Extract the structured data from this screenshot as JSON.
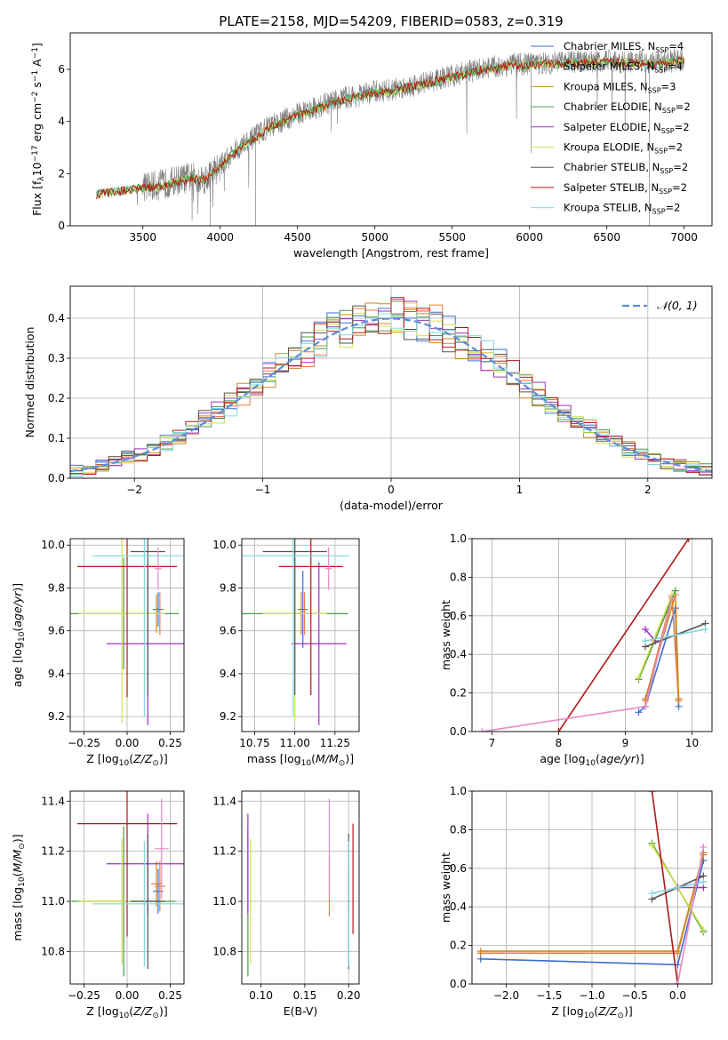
{
  "figure_title": "PLATE=2158, MJD=54209, FIBERID=0583, z=0.319",
  "colors": {
    "Chabrier MILES": "#3b6fd4",
    "Salpeter MILES": "#f07a3a",
    "Kroupa MILES": "#c98a22",
    "Chabrier ELODIE": "#4a9a4a",
    "Salpeter ELODIE": "#9b33c0",
    "Kroupa ELODIE": "#d4e04a",
    "Chabrier STELIB": "#555555",
    "Salpeter STELIB": "#b01818",
    "Kroupa STELIB": "#80d8e0",
    "normal": "#5b8dd9",
    "extra_pink": "#e68ac4",
    "data": "#808080",
    "grid": "#b0b0b0"
  },
  "chart_data": [
    {
      "type": "line",
      "title": "PLATE=2158, MJD=54209, FIBERID=0583, z=0.319",
      "xlabel": "wavelength [Angstrom, rest frame]",
      "ylabel": "Flux [f_λ 10^-17 erg cm^-2 s^-1 A^-1]",
      "xlim": [
        3030,
        7180
      ],
      "ylim": [
        0,
        7.4
      ],
      "xticks": [
        "3500",
        "4000",
        "4500",
        "5000",
        "5500",
        "6000",
        "6500",
        "7000"
      ],
      "yticks": [
        "0",
        "2",
        "4",
        "6"
      ],
      "grid": false,
      "legend_position": "top-right",
      "legend": [
        "Chabrier MILES, N_SSP=4",
        "Salpeter MILES, N_SSP=4",
        "Kroupa MILES, N_SSP=3",
        "Chabrier ELODIE, N_SSP=2",
        "Salpeter ELODIE, N_SSP=2",
        "Kroupa ELODIE, N_SSP=2",
        "Chabrier STELIB, N_SSP=2",
        "Salpeter STELIB, N_SSP=2",
        "Kroupa STELIB, N_SSP=2"
      ],
      "continuum_x": [
        3200,
        3300,
        3400,
        3500,
        3600,
        3700,
        3800,
        3900,
        4000,
        4100,
        4200,
        4300,
        4400,
        4500,
        4600,
        4700,
        4800,
        4900,
        5000,
        5100,
        5200,
        5300,
        5400,
        5500,
        5600,
        5700,
        5800,
        5900,
        6000,
        6100,
        6200,
        6300,
        6400,
        6500,
        6600,
        6700,
        6800,
        6900,
        7000
      ],
      "continuum_y": [
        1.25,
        1.35,
        1.42,
        1.5,
        1.55,
        1.7,
        1.85,
        1.8,
        2.3,
        2.9,
        3.3,
        3.75,
        4.0,
        4.3,
        4.5,
        4.7,
        4.9,
        5.0,
        5.15,
        5.2,
        5.35,
        5.45,
        5.6,
        5.75,
        5.9,
        6.05,
        6.1,
        6.2,
        6.2,
        6.25,
        6.25,
        6.3,
        6.3,
        6.35,
        6.3,
        6.3,
        6.25,
        6.3,
        6.4
      ]
    },
    {
      "type": "bar",
      "xlabel": "(data-model)/error",
      "ylabel": "Normed distribution",
      "xlim": [
        -2.5,
        2.5
      ],
      "ylim": [
        0,
        0.48
      ],
      "xticks": [
        "−2",
        "−1",
        "0",
        "1",
        "2"
      ],
      "yticks": [
        "0.0",
        "0.1",
        "0.2",
        "0.3",
        "0.4"
      ],
      "grid": true,
      "legend_position": "top-right",
      "legend": [
        "𝒩(0, 1)"
      ],
      "bin_width": 0.1,
      "bin_start": -2.5,
      "normal_mean": 0,
      "normal_sigma": 1
    },
    {
      "type": "scatter",
      "name": "age_vs_Z",
      "xlabel": "Z [log10(Z/Z⊙)]",
      "ylabel": "age  [log10(age/yr)]",
      "xlim": [
        -0.33,
        0.33
      ],
      "ylim": [
        9.13,
        10.03
      ],
      "xticks": [
        "−0.25",
        "0.00",
        "0.25"
      ],
      "yticks": [
        "9.2",
        "9.4",
        "9.6",
        "9.8",
        "10.0"
      ],
      "grid": true,
      "points": [
        {
          "model": "Chabrier MILES",
          "x": 0.18,
          "y": 9.7,
          "xerr": 0.03,
          "yerr": 0.08
        },
        {
          "model": "Salpeter MILES",
          "x": 0.19,
          "y": 9.68,
          "xerr": 0.01,
          "yerr": 0.1
        },
        {
          "model": "Kroupa MILES",
          "x": 0.17,
          "y": 9.68,
          "xerr": 0.02,
          "yerr": 0.09
        },
        {
          "model": "Chabrier ELODIE",
          "x": -0.02,
          "y": 9.68,
          "xerr": 0.32,
          "yerr": 0.26
        },
        {
          "model": "Salpeter ELODIE",
          "x": 0.12,
          "y": 9.54,
          "xerr": 0.24,
          "yerr": 0.38
        },
        {
          "model": "Kroupa ELODIE",
          "x": -0.03,
          "y": 9.68,
          "xerr": 0.25,
          "yerr": 0.51
        },
        {
          "model": "Chabrier STELIB",
          "x": 0.12,
          "y": 9.97,
          "xerr": 0.1,
          "yerr": 0.67
        },
        {
          "model": "Salpeter STELIB",
          "x": 0.0,
          "y": 9.9,
          "xerr": 0.29,
          "yerr": 0.61
        },
        {
          "model": "Kroupa STELIB",
          "x": 0.1,
          "y": 9.95,
          "xerr": 0.3,
          "yerr": 0.75
        },
        {
          "model": "extra",
          "x": 0.18,
          "y": 9.89,
          "xerr": 0.02,
          "yerr": 0.1
        }
      ]
    },
    {
      "type": "scatter",
      "name": "age_vs_mass",
      "xlabel": "mass [log10(M/M⊙)]",
      "ylabel": "",
      "xlim": [
        10.67,
        11.4
      ],
      "ylim": [
        9.13,
        10.03
      ],
      "xticks": [
        "10.75",
        "11.00",
        "11.25"
      ],
      "yticks": [
        "9.2",
        "9.4",
        "9.6",
        "9.8",
        "10.0"
      ],
      "grid": true,
      "points": [
        {
          "model": "Chabrier MILES",
          "x": 11.05,
          "y": 9.7,
          "xerr": 0.03,
          "yerr": 0.18
        },
        {
          "model": "Salpeter MILES",
          "x": 11.06,
          "y": 9.68,
          "xerr": 0.04,
          "yerr": 0.1
        },
        {
          "model": "Kroupa MILES",
          "x": 11.04,
          "y": 9.68,
          "xerr": 0.04,
          "yerr": 0.1
        },
        {
          "model": "Chabrier ELODIE",
          "x": 11.0,
          "y": 9.68,
          "xerr": 0.33,
          "yerr": 0.26
        },
        {
          "model": "Salpeter ELODIE",
          "x": 11.15,
          "y": 9.54,
          "xerr": 0.17,
          "yerr": 0.38
        },
        {
          "model": "Kroupa ELODIE",
          "x": 11.0,
          "y": 9.68,
          "xerr": 0.2,
          "yerr": 0.5
        },
        {
          "model": "Chabrier STELIB",
          "x": 11.0,
          "y": 9.97,
          "xerr": 0.2,
          "yerr": 0.67
        },
        {
          "model": "Salpeter STELIB",
          "x": 11.1,
          "y": 9.9,
          "xerr": 0.2,
          "yerr": 0.6
        },
        {
          "model": "Kroupa STELIB",
          "x": 10.99,
          "y": 9.95,
          "xerr": 0.35,
          "yerr": 0.75
        },
        {
          "model": "extra",
          "x": 11.21,
          "y": 9.89,
          "xerr": 0.02,
          "yerr": 0.1
        }
      ]
    },
    {
      "type": "line",
      "name": "weight_vs_age",
      "xlabel": "age  [log10(age/yr)]",
      "ylabel": "mass weight",
      "xlim": [
        6.7,
        10.3
      ],
      "ylim": [
        0,
        1.0
      ],
      "xticks": [
        "7",
        "8",
        "9",
        "10"
      ],
      "yticks": [
        "0.0",
        "0.2",
        "0.4",
        "0.6",
        "0.8",
        "1.0"
      ],
      "grid": true,
      "series": [
        {
          "model": "Chabrier MILES",
          "x": [
            9.2,
            9.3,
            9.75,
            9.8
          ],
          "y": [
            0.1,
            0.13,
            0.64,
            0.13
          ]
        },
        {
          "model": "Salpeter MILES",
          "x": [
            9.3,
            9.7,
            9.8
          ],
          "y": [
            0.16,
            0.7,
            0.16
          ]
        },
        {
          "model": "Kroupa MILES",
          "x": [
            9.3,
            9.75,
            9.8
          ],
          "y": [
            0.17,
            0.71,
            0.17
          ]
        },
        {
          "model": "Chabrier ELODIE",
          "x": [
            9.2,
            9.75
          ],
          "y": [
            0.27,
            0.73
          ]
        },
        {
          "model": "Salpeter ELODIE",
          "x": [
            9.3,
            9.45
          ],
          "y": [
            0.53,
            0.47
          ]
        },
        {
          "model": "Kroupa ELODIE",
          "x": [
            9.2,
            9.7
          ],
          "y": [
            0.28,
            0.71
          ]
        },
        {
          "model": "Chabrier STELIB",
          "x": [
            9.3,
            10.2
          ],
          "y": [
            0.44,
            0.56
          ]
        },
        {
          "model": "Salpeter STELIB",
          "x": [
            8.0,
            9.95
          ],
          "y": [
            0.0,
            1.0
          ]
        },
        {
          "model": "Kroupa STELIB",
          "x": [
            9.3,
            10.2
          ],
          "y": [
            0.47,
            0.53
          ]
        },
        {
          "model": "extra",
          "x": [
            6.85,
            9.3,
            9.7
          ],
          "y": [
            0.0,
            0.13,
            0.69
          ]
        }
      ]
    },
    {
      "type": "scatter",
      "name": "mass_vs_Z",
      "xlabel": "Z [log10(Z/Z⊙)]",
      "ylabel": "mass [log10(M/M⊙)]",
      "xlim": [
        -0.33,
        0.33
      ],
      "ylim": [
        10.67,
        11.44
      ],
      "xticks": [
        "−0.25",
        "0.00",
        "0.25"
      ],
      "yticks": [
        "10.8",
        "11.0",
        "11.2",
        "11.4"
      ],
      "grid": true,
      "points": [
        {
          "model": "Chabrier MILES",
          "x": 0.18,
          "y": 11.04,
          "xerr": 0.03,
          "yerr": 0.09
        },
        {
          "model": "Salpeter MILES",
          "x": 0.19,
          "y": 11.06,
          "xerr": 0.03,
          "yerr": 0.1
        },
        {
          "model": "Kroupa MILES",
          "x": 0.17,
          "y": 11.07,
          "xerr": 0.03,
          "yerr": 0.09
        },
        {
          "model": "Chabrier ELODIE",
          "x": -0.02,
          "y": 11.0,
          "xerr": 0.3,
          "yerr": 0.3
        },
        {
          "model": "Salpeter ELODIE",
          "x": 0.12,
          "y": 11.15,
          "xerr": 0.24,
          "yerr": 0.2
        },
        {
          "model": "Kroupa ELODIE",
          "x": -0.03,
          "y": 11.0,
          "xerr": 0.25,
          "yerr": 0.25
        },
        {
          "model": "Chabrier STELIB",
          "x": 0.12,
          "y": 11.0,
          "xerr": 0.1,
          "yerr": 0.27
        },
        {
          "model": "Salpeter STELIB",
          "x": 0.0,
          "y": 11.31,
          "xerr": 0.29,
          "yerr": 0.45
        },
        {
          "model": "Kroupa STELIB",
          "x": 0.1,
          "y": 10.99,
          "xerr": 0.3,
          "yerr": 0.25
        },
        {
          "model": "extra",
          "x": 0.2,
          "y": 11.21,
          "xerr": 0.04,
          "yerr": 0.2
        }
      ]
    },
    {
      "type": "scatter",
      "name": "mass_vs_EBV",
      "xlabel": "E(B-V)",
      "ylabel": "",
      "xlim": [
        0.078,
        0.212
      ],
      "ylim": [
        10.67,
        11.44
      ],
      "xticks": [
        "0.10",
        "0.15",
        "0.20"
      ],
      "yticks": [
        "10.8",
        "11.0",
        "11.2",
        "11.4"
      ],
      "grid": true,
      "points": [
        {
          "model": "Chabrier MILES",
          "x": 0.2,
          "y": 11.04,
          "xerr": 0,
          "yerr": 0.09
        },
        {
          "model": "Salpeter MILES",
          "x": 0.178,
          "y": 11.06,
          "xerr": 0,
          "yerr": 0.12
        },
        {
          "model": "Kroupa MILES",
          "x": 0.2,
          "y": 11.07,
          "xerr": 0,
          "yerr": 0.09
        },
        {
          "model": "Chabrier ELODIE",
          "x": 0.085,
          "y": 11.0,
          "xerr": 0,
          "yerr": 0.3
        },
        {
          "model": "Salpeter ELODIE",
          "x": 0.085,
          "y": 11.15,
          "xerr": 0,
          "yerr": 0.2
        },
        {
          "model": "Kroupa ELODIE",
          "x": 0.088,
          "y": 11.0,
          "xerr": 0,
          "yerr": 0.25
        },
        {
          "model": "Chabrier STELIB",
          "x": 0.2,
          "y": 11.0,
          "xerr": 0,
          "yerr": 0.27
        },
        {
          "model": "Salpeter STELIB",
          "x": 0.205,
          "y": 11.09,
          "xerr": 0,
          "yerr": 0.22
        },
        {
          "model": "Kroupa STELIB",
          "x": 0.2,
          "y": 10.99,
          "xerr": 0,
          "yerr": 0.25
        },
        {
          "model": "extra",
          "x": 0.178,
          "y": 11.21,
          "xerr": 0,
          "yerr": 0.2
        }
      ]
    },
    {
      "type": "line",
      "name": "weight_vs_Z",
      "xlabel": "Z [log10(Z/Z⊙)]",
      "ylabel": "mass weight",
      "xlim": [
        -2.4,
        0.4
      ],
      "ylim": [
        0,
        1.0
      ],
      "xticks": [
        "−2.0",
        "−1.5",
        "−1.0",
        "−0.5",
        "0.0"
      ],
      "yticks": [
        "0.0",
        "0.2",
        "0.4",
        "0.6",
        "0.8",
        "1.0"
      ],
      "grid": true,
      "series": [
        {
          "model": "Chabrier MILES",
          "x": [
            -2.3,
            0.0,
            0.3
          ],
          "y": [
            0.13,
            0.1,
            0.64
          ]
        },
        {
          "model": "Salpeter MILES",
          "x": [
            -2.3,
            0.0,
            0.3
          ],
          "y": [
            0.16,
            0.16,
            0.67
          ]
        },
        {
          "model": "Kroupa MILES",
          "x": [
            -2.3,
            0.0,
            0.3
          ],
          "y": [
            0.17,
            0.17,
            0.68
          ]
        },
        {
          "model": "Chabrier ELODIE",
          "x": [
            -0.3,
            0.3
          ],
          "y": [
            0.73,
            0.27
          ]
        },
        {
          "model": "Salpeter ELODIE",
          "x": [
            0.0,
            0.3
          ],
          "y": [
            0.5,
            0.5
          ]
        },
        {
          "model": "Kroupa ELODIE",
          "x": [
            -0.3,
            0.3
          ],
          "y": [
            0.72,
            0.28
          ]
        },
        {
          "model": "Chabrier STELIB",
          "x": [
            -0.3,
            0.3
          ],
          "y": [
            0.44,
            0.56
          ]
        },
        {
          "model": "Salpeter STELIB",
          "x": [
            -0.3,
            0.0
          ],
          "y": [
            1.0,
            0.0
          ]
        },
        {
          "model": "Kroupa STELIB",
          "x": [
            -0.3,
            0.3
          ],
          "y": [
            0.47,
            0.53
          ]
        },
        {
          "model": "extra",
          "x": [
            0.0,
            0.3
          ],
          "y": [
            0.0,
            0.71
          ]
        }
      ]
    }
  ]
}
